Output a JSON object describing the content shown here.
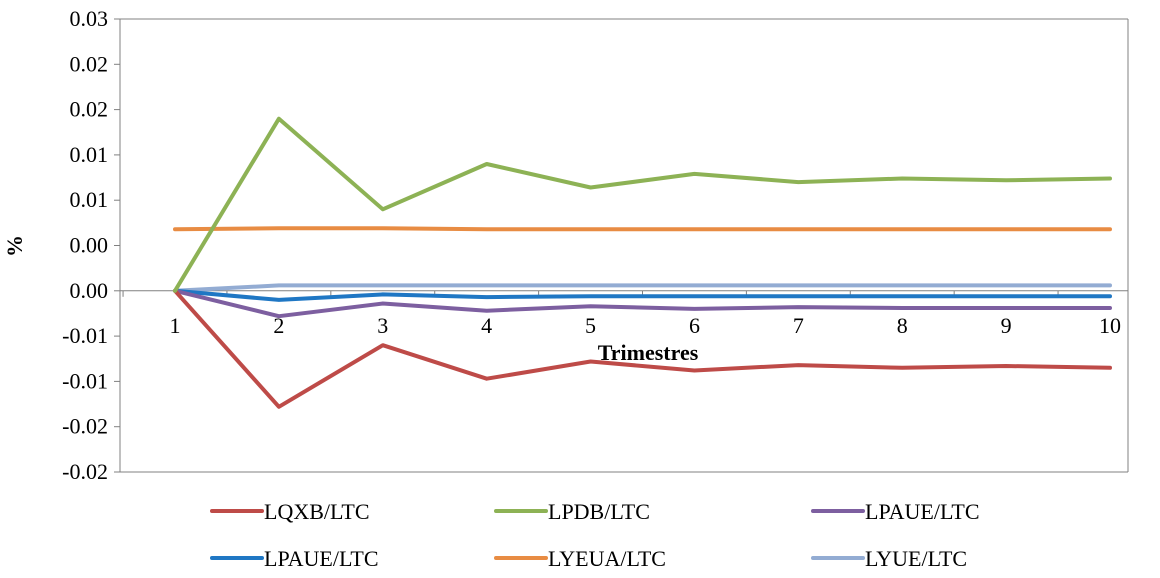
{
  "chart_data": {
    "type": "line",
    "title": "",
    "xlabel": "Trimestres",
    "ylabel": "%",
    "x": [
      1,
      2,
      3,
      4,
      5,
      6,
      7,
      8,
      9,
      10
    ],
    "ylim": [
      -0.02,
      0.03
    ],
    "y_tick_values": [
      0.03,
      0.025,
      0.02,
      0.015,
      0.01,
      0.005,
      0.0,
      -0.005,
      -0.01,
      -0.015,
      -0.02
    ],
    "y_tick_labels": [
      "0.03",
      "0.02",
      "0.02",
      "0.01",
      "0.01",
      "0.00",
      "0.00",
      "-0.01",
      "-0.01",
      "-0.02",
      "-0.02"
    ],
    "x_tick_labels": [
      "1",
      "2",
      "3",
      "4",
      "5",
      "6",
      "7",
      "8",
      "9",
      "10"
    ],
    "grid": false,
    "legend_position": "bottom",
    "series": [
      {
        "name": "LQXB/LTC",
        "color": "#BE4B48",
        "values": [
          0.0,
          -0.0128,
          -0.006,
          -0.0097,
          -0.0078,
          -0.0088,
          -0.0082,
          -0.0085,
          -0.0083,
          -0.0085
        ]
      },
      {
        "name": "LPDB/LTC",
        "color": "#8DB255",
        "values": [
          0.0,
          0.019,
          0.009,
          0.014,
          0.0114,
          0.0129,
          0.012,
          0.0124,
          0.0122,
          0.0124
        ]
      },
      {
        "name": "LPAUE/LTC",
        "color": "#7D5FA0",
        "values": [
          0.0,
          -0.0028,
          -0.0014,
          -0.0022,
          -0.0017,
          -0.002,
          -0.0018,
          -0.0019,
          -0.0019,
          -0.0019
        ]
      },
      {
        "name": "LPAUE/LTC",
        "color": "#1F77C4",
        "values": [
          0.0,
          -0.001,
          -0.0004,
          -0.0007,
          -0.0006,
          -0.0006,
          -0.0006,
          -0.0006,
          -0.0006,
          -0.0006
        ]
      },
      {
        "name": "LYEUA/LTC",
        "color": "#E88C43",
        "values": [
          0.0068,
          0.0069,
          0.0069,
          0.0068,
          0.0068,
          0.0068,
          0.0068,
          0.0068,
          0.0068,
          0.0068
        ]
      },
      {
        "name": "LYUE/LTC",
        "color": "#93ACD3",
        "values": [
          0.0,
          0.0006,
          0.0006,
          0.0006,
          0.0006,
          0.0006,
          0.0006,
          0.0006,
          0.0006,
          0.0006
        ]
      }
    ]
  }
}
